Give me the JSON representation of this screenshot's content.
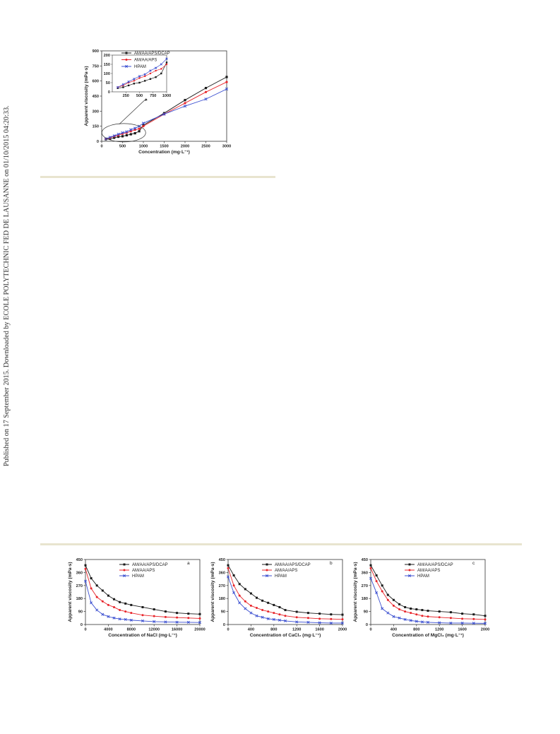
{
  "page": {
    "watermark": "Published on 17 September 2015. Downloaded by ECOLE POLYTECHNIC FED DE LAUSANNE on 01/10/2015 04:20:33."
  },
  "colors": {
    "black_series": "#1a1a1a",
    "red_series": "#e8242a",
    "blue_series": "#3b4fd0",
    "rule": "#e8e4cf"
  },
  "chart_data": [
    {
      "id": "concentration",
      "type": "line",
      "xlabel": "Concentration (mg·L⁻¹)",
      "ylabel": "Apparent viscosity (mPa·s)",
      "xlim": [
        0,
        3000
      ],
      "ylim": [
        0,
        900
      ],
      "xticks": [
        0,
        500,
        1000,
        1500,
        2000,
        2500,
        3000
      ],
      "yticks": [
        0,
        150,
        300,
        450,
        600,
        750,
        900
      ],
      "legend": [
        "AM/AA/APS/DCAP",
        "AM/AA/APS",
        "HPAM"
      ],
      "series": [
        {
          "name": "AM/AA/APS/DCAP",
          "x": [
            100,
            200,
            300,
            400,
            500,
            600,
            700,
            800,
            900,
            1000,
            1500,
            2000,
            2500,
            3000
          ],
          "y": [
            20,
            25,
            35,
            45,
            50,
            60,
            70,
            80,
            100,
            160,
            280,
            410,
            530,
            640
          ]
        },
        {
          "name": "AM/AA/APS",
          "x": [
            100,
            200,
            300,
            400,
            500,
            600,
            700,
            800,
            900,
            1000,
            1500,
            2000,
            2500,
            3000
          ],
          "y": [
            25,
            35,
            50,
            60,
            75,
            85,
            100,
            115,
            125,
            150,
            270,
            380,
            490,
            590
          ]
        },
        {
          "name": "HPAM",
          "x": [
            100,
            200,
            300,
            400,
            500,
            600,
            700,
            800,
            900,
            1000,
            1500,
            2000,
            2500,
            3000
          ],
          "y": [
            25,
            40,
            55,
            70,
            85,
            95,
            115,
            130,
            150,
            180,
            270,
            350,
            420,
            520
          ]
        }
      ],
      "inset": {
        "xlim": [
          0,
          1000
        ],
        "ylim": [
          0,
          200
        ],
        "xticks": [
          250,
          500,
          750,
          1000
        ],
        "yticks": [
          0,
          50,
          100,
          150,
          200
        ],
        "series": [
          {
            "name": "AM/AA/APS/DCAP",
            "x": [
              100,
              200,
              300,
              400,
              500,
              600,
              700,
              800,
              900,
              1000
            ],
            "y": [
              20,
              25,
              35,
              45,
              50,
              60,
              70,
              80,
              100,
              160
            ]
          },
          {
            "name": "AM/AA/APS",
            "x": [
              100,
              200,
              300,
              400,
              500,
              600,
              700,
              800,
              900,
              1000
            ],
            "y": [
              25,
              35,
              50,
              60,
              75,
              85,
              100,
              115,
              125,
              150
            ]
          },
          {
            "name": "HPAM",
            "x": [
              100,
              200,
              300,
              400,
              500,
              600,
              700,
              800,
              900,
              1000
            ],
            "y": [
              25,
              40,
              55,
              70,
              85,
              95,
              115,
              130,
              150,
              180
            ]
          }
        ]
      }
    },
    {
      "id": "nacl",
      "type": "line",
      "panel": "a",
      "xlabel": "Concentration of NaCl (mg·L⁻¹)",
      "ylabel": "Apparent viscosity (mPa·s)",
      "xlim": [
        0,
        20000
      ],
      "ylim": [
        0,
        450
      ],
      "xticks": [
        0,
        4000,
        8000,
        12000,
        16000,
        20000
      ],
      "yticks": [
        0,
        90,
        180,
        270,
        360,
        450
      ],
      "legend": [
        "AM/AA/APS/DCAP",
        "AM/AA/APS",
        "HPAM"
      ],
      "series": [
        {
          "name": "AM/AA/APS/DCAP",
          "x": [
            0,
            1000,
            2000,
            3000,
            4000,
            5000,
            6000,
            7000,
            8000,
            10000,
            12000,
            14000,
            16000,
            18000,
            20000
          ],
          "y": [
            410,
            320,
            270,
            235,
            200,
            175,
            155,
            145,
            135,
            120,
            105,
            90,
            80,
            75,
            72
          ]
        },
        {
          "name": "AM/AA/APS",
          "x": [
            0,
            1000,
            2000,
            3000,
            4000,
            5000,
            6000,
            7000,
            8000,
            10000,
            12000,
            14000,
            16000,
            18000,
            20000
          ],
          "y": [
            385,
            250,
            190,
            160,
            135,
            120,
            100,
            90,
            80,
            65,
            58,
            52,
            48,
            45,
            42
          ]
        },
        {
          "name": "HPAM",
          "x": [
            0,
            1000,
            2000,
            3000,
            4000,
            5000,
            6000,
            7000,
            8000,
            10000,
            12000,
            14000,
            16000,
            18000,
            20000
          ],
          "y": [
            300,
            150,
            100,
            70,
            55,
            45,
            38,
            35,
            30,
            25,
            20,
            18,
            16,
            15,
            14
          ]
        }
      ]
    },
    {
      "id": "cacl2",
      "type": "line",
      "panel": "b",
      "xlabel": "Concentration of CaCl₂ (mg·L⁻¹)",
      "ylabel": "Apparent viscosity (mPa·s)",
      "xlim": [
        0,
        2000
      ],
      "ylim": [
        0,
        450
      ],
      "xticks": [
        0,
        400,
        800,
        1200,
        1600,
        2000
      ],
      "yticks": [
        0,
        90,
        180,
        270,
        360,
        450
      ],
      "legend": [
        "AM/AA/APS/DCAP",
        "AM/AA/APS",
        "HPAM"
      ],
      "series": [
        {
          "name": "AM/AA/APS/DCAP",
          "x": [
            0,
            100,
            200,
            300,
            400,
            500,
            600,
            700,
            800,
            900,
            1000,
            1200,
            1400,
            1600,
            1800,
            2000
          ],
          "y": [
            410,
            340,
            280,
            245,
            215,
            185,
            165,
            150,
            135,
            120,
            100,
            88,
            80,
            75,
            70,
            68
          ]
        },
        {
          "name": "AM/AA/APS",
          "x": [
            0,
            100,
            200,
            300,
            400,
            500,
            600,
            700,
            800,
            900,
            1000,
            1200,
            1400,
            1600,
            1800,
            2000
          ],
          "y": [
            390,
            270,
            200,
            160,
            130,
            115,
            100,
            90,
            80,
            70,
            60,
            50,
            45,
            40,
            38,
            36
          ]
        },
        {
          "name": "HPAM",
          "x": [
            0,
            100,
            200,
            300,
            400,
            500,
            600,
            700,
            800,
            900,
            1000,
            1200,
            1400,
            1600,
            1800,
            2000
          ],
          "y": [
            330,
            220,
            150,
            110,
            80,
            60,
            50,
            40,
            35,
            30,
            25,
            18,
            15,
            12,
            10,
            10
          ]
        }
      ]
    },
    {
      "id": "mgcl2",
      "type": "line",
      "panel": "c",
      "xlabel": "Concentration of MgCl₂ (mg·L⁻¹)",
      "ylabel": "Apparent viscosity (mPa·s)",
      "xlim": [
        0,
        2000
      ],
      "ylim": [
        0,
        450
      ],
      "xticks": [
        0,
        400,
        800,
        1200,
        1600,
        2000
      ],
      "yticks": [
        0,
        90,
        180,
        270,
        360,
        450
      ],
      "legend": [
        "AM/AA/APS/DCAP",
        "AM/AA/APS",
        "HPAM"
      ],
      "series": [
        {
          "name": "AM/AA/APS/DCAP",
          "x": [
            0,
            100,
            200,
            300,
            400,
            500,
            600,
            700,
            800,
            900,
            1000,
            1200,
            1400,
            1600,
            1800,
            2000
          ],
          "y": [
            410,
            340,
            270,
            205,
            170,
            140,
            120,
            110,
            105,
            100,
            95,
            90,
            85,
            75,
            70,
            60
          ]
        },
        {
          "name": "AM/AA/APS",
          "x": [
            0,
            100,
            200,
            300,
            400,
            500,
            600,
            700,
            800,
            900,
            1000,
            1200,
            1400,
            1600,
            1800,
            2000
          ],
          "y": [
            390,
            300,
            230,
            170,
            130,
            105,
            90,
            80,
            70,
            60,
            55,
            50,
            45,
            40,
            38,
            35
          ]
        },
        {
          "name": "HPAM",
          "x": [
            0,
            100,
            200,
            300,
            400,
            500,
            600,
            700,
            800,
            900,
            1000,
            1200,
            1400,
            1600,
            1800,
            2000
          ],
          "y": [
            320,
            220,
            110,
            80,
            55,
            45,
            35,
            28,
            22,
            18,
            15,
            12,
            10,
            10,
            9,
            8
          ]
        }
      ]
    }
  ]
}
